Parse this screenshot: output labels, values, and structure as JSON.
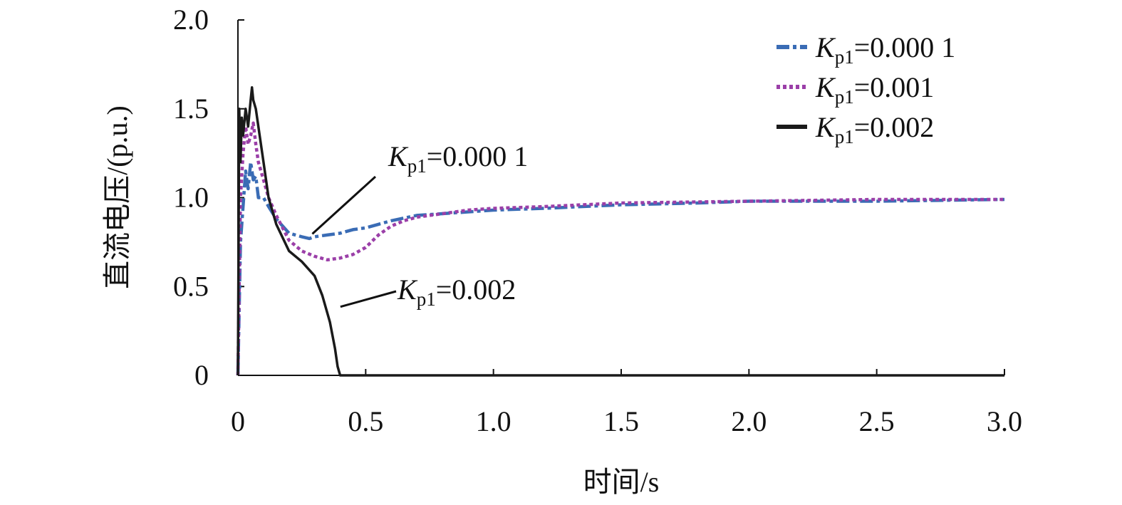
{
  "chart_data": {
    "type": "line",
    "title": "",
    "xlabel": "时间/s",
    "ylabel": "直流电压/(p.u.)",
    "xlim": [
      0,
      3.0
    ],
    "ylim": [
      0,
      2.0
    ],
    "x_ticks": [
      "0",
      "0.5",
      "1.0",
      "1.5",
      "2.0",
      "2.5",
      "3.0"
    ],
    "x_tick_values": [
      0,
      0.5,
      1.0,
      1.5,
      2.0,
      2.5,
      3.0
    ],
    "y_ticks": [
      "0",
      "0.5",
      "1.0",
      "1.5",
      "2.0"
    ],
    "y_tick_values": [
      0,
      0.5,
      1.0,
      1.5,
      2.0
    ],
    "grid": false,
    "legend_position": "top-right",
    "series": [
      {
        "name_var": "K",
        "name_sub": "p1",
        "name_value": "=0.000 1",
        "color": "#3a6cb5",
        "dash": "18 5 5 5",
        "x": [
          0,
          0.01,
          0.02,
          0.03,
          0.04,
          0.05,
          0.06,
          0.07,
          0.08,
          0.1,
          0.12,
          0.15,
          0.2,
          0.25,
          0.28,
          0.3,
          0.35,
          0.4,
          0.45,
          0.5,
          0.55,
          0.6,
          0.7,
          0.8,
          0.9,
          1.0,
          1.2,
          1.5,
          1.8,
          2.0,
          2.5,
          3.0
        ],
        "y": [
          0,
          0.75,
          0.95,
          1.15,
          1.05,
          1.2,
          1.1,
          1.12,
          1.0,
          1.0,
          0.95,
          0.88,
          0.8,
          0.78,
          0.77,
          0.78,
          0.79,
          0.8,
          0.82,
          0.83,
          0.85,
          0.87,
          0.9,
          0.91,
          0.92,
          0.93,
          0.94,
          0.96,
          0.97,
          0.98,
          0.98,
          0.99
        ]
      },
      {
        "name_var": "K",
        "name_sub": "p1",
        "name_value": "=0.001",
        "color": "#9b3fa8",
        "dash": "5 4",
        "x": [
          0,
          0.01,
          0.02,
          0.03,
          0.04,
          0.05,
          0.06,
          0.07,
          0.08,
          0.1,
          0.12,
          0.15,
          0.2,
          0.25,
          0.3,
          0.35,
          0.4,
          0.45,
          0.5,
          0.55,
          0.6,
          0.65,
          0.7,
          0.8,
          0.9,
          1.0,
          1.2,
          1.5,
          2.0,
          2.5,
          3.0
        ],
        "y": [
          0,
          1.0,
          1.25,
          1.4,
          1.3,
          1.35,
          1.42,
          1.3,
          1.2,
          1.1,
          1.0,
          0.9,
          0.76,
          0.7,
          0.67,
          0.65,
          0.66,
          0.68,
          0.72,
          0.79,
          0.84,
          0.87,
          0.89,
          0.91,
          0.93,
          0.94,
          0.95,
          0.97,
          0.98,
          0.99,
          0.99
        ]
      },
      {
        "name_var": "K",
        "name_sub": "p1",
        "name_value": "=0.002",
        "color": "#1a1a1a",
        "dash": "",
        "x": [
          0,
          0.005,
          0.01,
          0.015,
          0.02,
          0.03,
          0.04,
          0.05,
          0.055,
          0.06,
          0.07,
          0.08,
          0.1,
          0.12,
          0.15,
          0.2,
          0.25,
          0.3,
          0.33,
          0.36,
          0.38,
          0.39,
          0.4,
          0.41,
          0.5,
          1.0,
          1.5,
          2.0,
          2.5,
          3.0
        ],
        "y": [
          0,
          1.5,
          1.2,
          1.45,
          1.35,
          1.5,
          1.4,
          1.55,
          1.62,
          1.55,
          1.5,
          1.4,
          1.2,
          1.0,
          0.85,
          0.7,
          0.64,
          0.56,
          0.45,
          0.3,
          0.15,
          0.05,
          0.0,
          0.0,
          0.0,
          0.0,
          0.0,
          0.0,
          0.0,
          0.0
        ]
      }
    ],
    "annotations": [
      {
        "var": "K",
        "sub": "p1",
        "value": "=0.000 1",
        "target": [
          0.28,
          0.78
        ]
      },
      {
        "var": "K",
        "sub": "p1",
        "value": "=0.002",
        "target": [
          0.39,
          0.37
        ]
      }
    ]
  }
}
